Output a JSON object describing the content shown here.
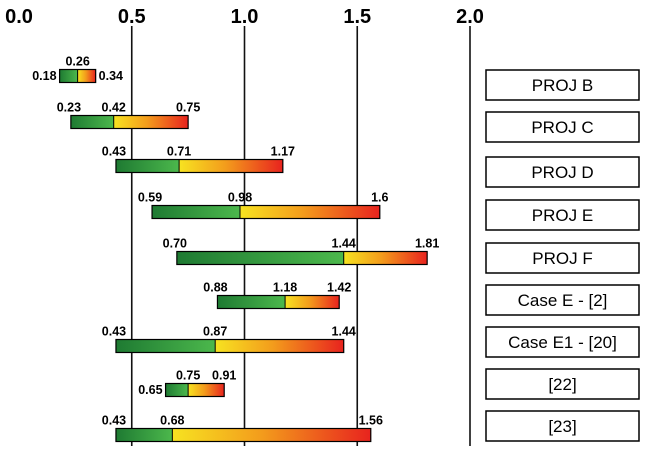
{
  "chart_data": {
    "type": "range-bar",
    "xlim": [
      0.0,
      2.0
    ],
    "x_ticks": [
      "0.0",
      "0.5",
      "1.0",
      "1.5",
      "2.0"
    ],
    "x_tick_values": [
      0.0,
      0.5,
      1.0,
      1.5,
      2.0
    ],
    "grid": "vertical lines at 0.5, 1.0, 1.5, 2.0",
    "colors": {
      "low": "#1e7a32",
      "mid_green": "#4cb84c",
      "mid_yellow": "#f7e321",
      "orange": "#f39c1c",
      "high": "#e8231e"
    },
    "cases": [
      {
        "label": "PROJ B",
        "min": 0.18,
        "mid": 0.26,
        "max": 0.34,
        "min_text": "0.18",
        "mid_text": "0.26",
        "max_text": "0.34"
      },
      {
        "label": "PROJ C",
        "min": 0.23,
        "mid": 0.42,
        "max": 0.75,
        "min_text": "0.23",
        "mid_text": "0.42",
        "max_text": "0.75"
      },
      {
        "label": "PROJ D",
        "min": 0.43,
        "mid": 0.71,
        "max": 1.17,
        "min_text": "0.43",
        "mid_text": "0.71",
        "max_text": "1.17"
      },
      {
        "label": "PROJ E",
        "min": 0.59,
        "mid": 0.98,
        "max": 1.6,
        "min_text": "0.59",
        "mid_text": "0.98",
        "max_text": "1.6"
      },
      {
        "label": "PROJ F",
        "min": 0.7,
        "mid": 1.44,
        "max": 1.81,
        "min_text": "0.70",
        "mid_text": "1.44",
        "max_text": "1.81"
      },
      {
        "label": "Case E - [2]",
        "min": 0.88,
        "mid": 1.18,
        "max": 1.42,
        "min_text": "0.88",
        "mid_text": "1.18",
        "max_text": "1.42"
      },
      {
        "label": "Case E1 - [20]",
        "min": 0.43,
        "mid": 0.87,
        "max": 1.44,
        "min_text": "0.43",
        "mid_text": "0.87",
        "max_text": "1.44"
      },
      {
        "label": "[22]",
        "min": 0.65,
        "mid": 0.75,
        "max": 0.91,
        "min_text": "0.65",
        "mid_text": "0.75",
        "max_text": "0.91"
      },
      {
        "label": "[23]",
        "min": 0.43,
        "mid": 0.68,
        "max": 1.56,
        "min_text": "0.43",
        "mid_text": "0.68",
        "max_text": "1.56"
      }
    ]
  }
}
